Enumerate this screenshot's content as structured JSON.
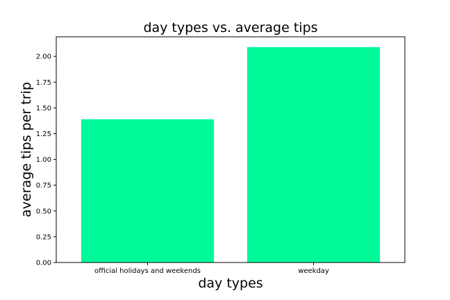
{
  "chart_data": {
    "type": "bar",
    "title": "day types vs. average tips",
    "xlabel": "day types",
    "ylabel": "average tips per trip",
    "categories": [
      "official holidays and weekends",
      "weekday"
    ],
    "values": [
      1.39,
      2.09
    ],
    "ylim": [
      0,
      2.19
    ],
    "yticks": [
      0,
      0.25,
      0.5,
      0.75,
      1.0,
      1.25,
      1.5,
      1.75,
      2.0
    ],
    "ytick_labels": [
      "0.00",
      "0.25",
      "0.50",
      "0.75",
      "1.00",
      "1.25",
      "1.50",
      "1.75",
      "2.00"
    ],
    "grid": false,
    "bar_color": "#00fa9a"
  }
}
